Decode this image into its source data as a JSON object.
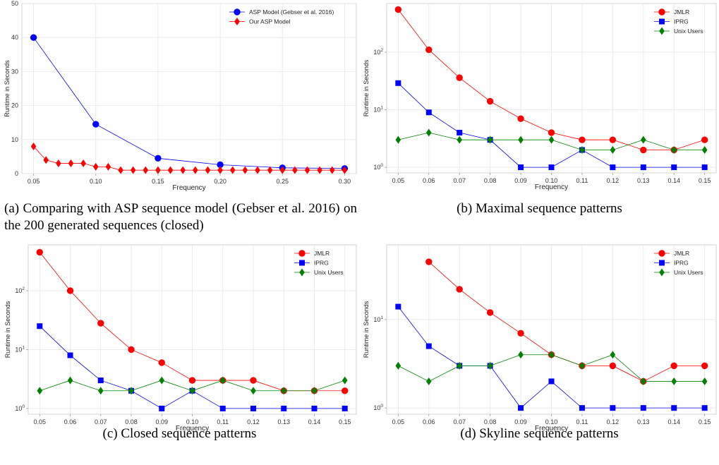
{
  "captions": {
    "a": "(a) Comparing with ASP sequence model (Gebser et al. 2016) on the 200 generated sequences (closed)",
    "b": "(b) Maximal sequence patterns",
    "c": "(c) Closed sequence patterns",
    "d": "(d) Skyline sequence patterns"
  },
  "chart_data": [
    {
      "id": "a",
      "type": "line",
      "scale": "linear",
      "xlabel": "Frequency",
      "ylabel": "Runtime in Seconds",
      "xlim": [
        0.05,
        0.3
      ],
      "ylim": [
        0,
        50
      ],
      "xticks": [
        "0.05",
        "0.10",
        "0.15",
        "0.20",
        "0.25",
        "0.30"
      ],
      "yticks": [
        "0",
        "10",
        "20",
        "30",
        "40",
        "50"
      ],
      "grid": true,
      "legend": "top-right",
      "series": [
        {
          "name": "ASP Model (Gebser et al. 2016)",
          "color": "#0000ff",
          "marker": "circle",
          "x": [
            0.05,
            0.1,
            0.15,
            0.2,
            0.25,
            0.3
          ],
          "y": [
            40,
            14.5,
            4.5,
            2.6,
            1.7,
            1.5
          ]
        },
        {
          "name": "Our ASP Model",
          "color": "#ff0000",
          "marker": "diamond",
          "x": [
            0.05,
            0.06,
            0.07,
            0.08,
            0.09,
            0.1,
            0.11,
            0.12,
            0.13,
            0.14,
            0.15,
            0.16,
            0.17,
            0.18,
            0.19,
            0.2,
            0.21,
            0.22,
            0.23,
            0.24,
            0.25,
            0.26,
            0.27,
            0.28,
            0.29,
            0.3
          ],
          "y": [
            8,
            4,
            3,
            3,
            3,
            2,
            2,
            1,
            1,
            1,
            1,
            1,
            1,
            1,
            1,
            1,
            1,
            1,
            1,
            1,
            1,
            1,
            1,
            1,
            1,
            1
          ]
        }
      ]
    },
    {
      "id": "b",
      "type": "line",
      "scale": "log",
      "xlabel": "Frequency",
      "ylabel": "Runtime in Seconds",
      "xlim": [
        0.05,
        0.15
      ],
      "ylim": [
        0.8,
        700
      ],
      "xticks": [
        "0.05",
        "0.06",
        "0.07",
        "0.08",
        "0.09",
        "0.10",
        "0.11",
        "0.12",
        "0.13",
        "0.14",
        "0.15"
      ],
      "grid": true,
      "legend": "top-right",
      "series": [
        {
          "name": "JMLR",
          "color": "#ff0000",
          "marker": "circle",
          "x": [
            0.05,
            0.06,
            0.07,
            0.08,
            0.09,
            0.1,
            0.11,
            0.12,
            0.13,
            0.14,
            0.15
          ],
          "y": [
            550,
            110,
            36,
            14,
            7,
            4,
            3,
            3,
            2,
            2,
            3
          ]
        },
        {
          "name": "IPRG",
          "color": "#0000ff",
          "marker": "square",
          "x": [
            0.05,
            0.06,
            0.07,
            0.08,
            0.09,
            0.1,
            0.11,
            0.12,
            0.13,
            0.14,
            0.15
          ],
          "y": [
            29,
            9,
            4,
            3,
            1,
            1,
            2,
            1,
            1,
            1,
            1
          ]
        },
        {
          "name": "Unix Users",
          "color": "#008000",
          "marker": "diamond",
          "x": [
            0.05,
            0.06,
            0.07,
            0.08,
            0.09,
            0.1,
            0.11,
            0.12,
            0.13,
            0.14,
            0.15
          ],
          "y": [
            3,
            4,
            3,
            3,
            3,
            3,
            2,
            2,
            3,
            2,
            2
          ]
        }
      ]
    },
    {
      "id": "c",
      "type": "line",
      "scale": "log",
      "xlabel": "Frequency",
      "ylabel": "Runtime in Seconds",
      "xlim": [
        0.05,
        0.15
      ],
      "ylim": [
        0.8,
        600
      ],
      "xticks": [
        "0.05",
        "0.06",
        "0.07",
        "0.08",
        "0.09",
        "0.10",
        "0.11",
        "0.12",
        "0.13",
        "0.14",
        "0.15"
      ],
      "grid": true,
      "legend": "top-right",
      "series": [
        {
          "name": "JMLR",
          "color": "#ff0000",
          "marker": "circle",
          "x": [
            0.05,
            0.06,
            0.07,
            0.08,
            0.09,
            0.1,
            0.11,
            0.12,
            0.13,
            0.14,
            0.15
          ],
          "y": [
            450,
            100,
            28,
            10,
            6,
            3,
            3,
            3,
            2,
            2,
            2
          ]
        },
        {
          "name": "IPRG",
          "color": "#0000ff",
          "marker": "square",
          "x": [
            0.05,
            0.06,
            0.07,
            0.08,
            0.09,
            0.1,
            0.11,
            0.12,
            0.13,
            0.14,
            0.15
          ],
          "y": [
            25,
            8,
            3,
            2,
            1,
            2,
            1,
            1,
            1,
            1,
            1
          ]
        },
        {
          "name": "Unix Users",
          "color": "#008000",
          "marker": "diamond",
          "x": [
            0.05,
            0.06,
            0.07,
            0.08,
            0.09,
            0.1,
            0.11,
            0.12,
            0.13,
            0.14,
            0.15
          ],
          "y": [
            2,
            3,
            2,
            2,
            3,
            2,
            3,
            2,
            2,
            2,
            3
          ]
        }
      ]
    },
    {
      "id": "d",
      "type": "line",
      "scale": "log",
      "xlabel": "Frequency",
      "ylabel": "Runtime in Seconds",
      "xlim": [
        0.05,
        0.15
      ],
      "ylim": [
        0.85,
        70
      ],
      "xticks": [
        "0.05",
        "0.06",
        "0.07",
        "0.08",
        "0.09",
        "0.10",
        "0.11",
        "0.12",
        "0.13",
        "0.14",
        "0.15"
      ],
      "grid": true,
      "legend": "top-right",
      "series": [
        {
          "name": "JMLR",
          "color": "#ff0000",
          "marker": "circle",
          "x": [
            0.06,
            0.07,
            0.08,
            0.09,
            0.1,
            0.11,
            0.12,
            0.13,
            0.14,
            0.15
          ],
          "y": [
            45,
            22,
            12,
            7,
            4,
            3,
            3,
            2,
            3,
            3
          ]
        },
        {
          "name": "IPRG",
          "color": "#0000ff",
          "marker": "square",
          "x": [
            0.05,
            0.06,
            0.07,
            0.08,
            0.09,
            0.1,
            0.11,
            0.12,
            0.13,
            0.14,
            0.15
          ],
          "y": [
            14,
            5,
            3,
            3,
            1,
            2,
            1,
            1,
            1,
            1,
            1
          ]
        },
        {
          "name": "Unix Users",
          "color": "#008000",
          "marker": "diamond",
          "x": [
            0.05,
            0.06,
            0.07,
            0.08,
            0.09,
            0.1,
            0.11,
            0.12,
            0.13,
            0.14,
            0.15
          ],
          "y": [
            3,
            2,
            3,
            3,
            4,
            4,
            3,
            4,
            2,
            2,
            2
          ]
        }
      ]
    }
  ]
}
